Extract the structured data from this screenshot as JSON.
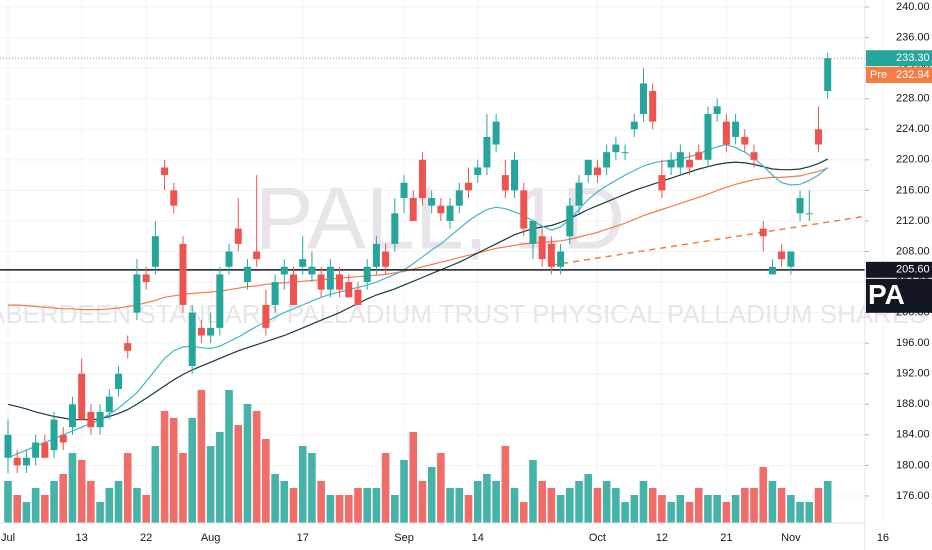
{
  "chart_data": {
    "type": "candlestick",
    "watermark": "PALL, 1D",
    "watermark_subtitle": "ABERDEEN STANDARD PALLADIUM TRUST PHYSICAL PALLADIUM SHARES ETF",
    "symbol_tag": "PA",
    "categories": [
      "Jul",
      null,
      null,
      null,
      null,
      null,
      null,
      null,
      "13",
      null,
      null,
      null,
      null,
      null,
      null,
      "22",
      null,
      null,
      null,
      null,
      null,
      null,
      "Aug",
      null,
      null,
      null,
      null,
      null,
      null,
      null,
      null,
      null,
      "17",
      null,
      null,
      null,
      null,
      null,
      null,
      null,
      null,
      null,
      null,
      "Sep",
      null,
      null,
      null,
      null,
      null,
      null,
      null,
      "14",
      null,
      null,
      null,
      null,
      null,
      null,
      null,
      null,
      null,
      null,
      null,
      null,
      "Oct",
      null,
      null,
      null,
      null,
      null,
      null,
      "12",
      null,
      null,
      null,
      null,
      null,
      null,
      "21",
      null,
      null,
      null,
      null,
      null,
      null,
      "Nov",
      null,
      null,
      null,
      null,
      null,
      null,
      null,
      null,
      null,
      "16"
    ],
    "open": [
      181,
      181,
      180,
      181,
      183,
      182,
      184,
      185,
      192,
      187,
      185,
      187,
      190,
      196,
      200,
      205,
      206,
      219,
      216,
      209,
      193,
      198,
      197,
      198,
      206,
      211,
      204,
      208,
      201,
      201,
      205,
      205,
      206,
      205,
      205,
      203,
      205,
      204,
      203,
      204,
      206,
      208,
      209,
      215,
      215,
      220,
      214,
      214,
      212,
      214,
      217,
      218,
      219,
      222,
      218,
      216,
      216,
      209,
      210,
      209,
      206,
      210,
      214,
      218,
      219,
      219,
      221,
      221,
      224,
      226,
      229,
      218,
      219,
      219,
      220,
      221,
      220,
      226,
      225,
      223,
      223,
      221,
      211,
      205,
      208,
      206,
      213,
      213,
      224,
      229,
      null,
      null,
      null,
      null,
      null,
      null
    ],
    "high": [
      186,
      182,
      182,
      184,
      184,
      187,
      185,
      189,
      194,
      188,
      188,
      190,
      193,
      197,
      207,
      206,
      212,
      220,
      217,
      210,
      201,
      199,
      200,
      206,
      209,
      215,
      207,
      218,
      203,
      205,
      207,
      206,
      210,
      208,
      206,
      207,
      206,
      205,
      204,
      207,
      210,
      209,
      215,
      218,
      216,
      221,
      216,
      215,
      215,
      217,
      219,
      220,
      226,
      226,
      220,
      221,
      217,
      212,
      211,
      210,
      209,
      215,
      218,
      220,
      220,
      222,
      223,
      222,
      226,
      232,
      230,
      220,
      221,
      222,
      221,
      222,
      227,
      228,
      226,
      226,
      224,
      222,
      212,
      207,
      209,
      208,
      216,
      216,
      227,
      234,
      null,
      null,
      null,
      null,
      null,
      null
    ],
    "low": [
      179,
      179,
      179,
      180,
      181,
      181,
      182,
      184,
      186,
      184,
      184,
      186,
      189,
      194,
      199,
      203,
      205,
      216,
      213,
      200,
      192,
      196,
      196,
      197,
      205,
      208,
      203,
      206,
      197,
      200,
      203,
      201,
      205,
      204,
      202,
      202,
      202,
      202,
      201,
      203,
      205,
      205,
      208,
      213,
      212,
      214,
      213,
      212,
      211,
      213,
      215,
      217,
      218,
      221,
      215,
      215,
      210,
      207,
      206,
      205,
      205,
      209,
      213,
      217,
      217,
      218,
      220,
      220,
      223,
      225,
      224,
      215,
      218,
      218,
      218,
      220,
      219,
      225,
      221,
      222,
      221,
      219,
      208,
      205,
      206,
      205,
      212,
      212,
      221,
      228,
      null,
      null,
      null,
      null,
      null,
      null
    ],
    "close": [
      184,
      180,
      181,
      183,
      181,
      186,
      183,
      188,
      186,
      185,
      187,
      189,
      192,
      195,
      205,
      204,
      210,
      218,
      214,
      201,
      200,
      197,
      198,
      205,
      208,
      209,
      206,
      207,
      198,
      204,
      206,
      201,
      207,
      206,
      203,
      206,
      203,
      202,
      201,
      206,
      209,
      206,
      213,
      217,
      212,
      215,
      215,
      213,
      214,
      216,
      216,
      219,
      223,
      225,
      216,
      220,
      211,
      212,
      207,
      206,
      208,
      214,
      217,
      220,
      218,
      221,
      222,
      221,
      225,
      230,
      225,
      216,
      220,
      221,
      219,
      220,
      226,
      227,
      222,
      225,
      222,
      220,
      210,
      206,
      207,
      208,
      215,
      213,
      222,
      233.3,
      null,
      null,
      null,
      null,
      null,
      null
    ],
    "volume": [
      30,
      20,
      15,
      25,
      20,
      30,
      35,
      50,
      45,
      30,
      15,
      25,
      30,
      50,
      25,
      20,
      55,
      80,
      75,
      50,
      75,
      95,
      55,
      65,
      95,
      70,
      85,
      80,
      60,
      35,
      30,
      25,
      55,
      50,
      30,
      20,
      20,
      20,
      25,
      25,
      25,
      50,
      20,
      45,
      65,
      30,
      40,
      50,
      25,
      25,
      20,
      30,
      35,
      30,
      55,
      25,
      15,
      45,
      30,
      25,
      20,
      25,
      30,
      35,
      25,
      30,
      25,
      15,
      20,
      30,
      25,
      20,
      15,
      20,
      15,
      25,
      20,
      20,
      15,
      20,
      25,
      25,
      40,
      30,
      25,
      20,
      15,
      15,
      25,
      30,
      null,
      null,
      null,
      null,
      null,
      null
    ],
    "vlim": [
      0,
      100
    ],
    "up_color": "#26a69a",
    "down_color": "#ef5350",
    "moving_averages": [
      {
        "color": "#f57c45",
        "values": [
          201,
          201,
          200.9,
          200.8,
          200.7,
          200.6,
          200.5,
          200.5,
          200.4,
          200.4,
          200.4,
          200.5,
          200.6,
          200.8,
          201,
          201.3,
          201.6,
          202,
          202.2,
          202.4,
          202.5,
          202.6,
          202.7,
          202.8,
          203,
          203.2,
          203.4,
          203.5,
          203.7,
          203.8,
          203.9,
          204,
          204.1,
          204.2,
          204.3,
          204.4,
          204.5,
          204.6,
          204.7,
          204.8,
          204.9,
          205,
          205.2,
          205.4,
          205.7,
          206,
          206.3,
          206.6,
          206.9,
          207.2,
          207.5,
          207.8,
          208.1,
          208.4,
          208.6,
          208.8,
          209,
          209.1,
          209.2,
          209.3,
          209.4,
          209.6,
          209.9,
          210.2,
          210.5,
          210.9,
          211.3,
          211.7,
          212.2,
          212.7,
          213.1,
          213.5,
          213.9,
          214.3,
          214.7,
          215.1,
          215.5,
          216,
          216.4,
          216.8,
          217.1,
          217.4,
          217.6,
          217.7,
          217.7,
          217.8,
          217.9,
          218.2,
          218.5,
          218.9,
          null,
          null,
          null,
          null,
          null,
          null
        ]
      },
      {
        "color": "#1b3a3a",
        "values": [
          188,
          187.7,
          187.4,
          187,
          186.7,
          186.4,
          186.2,
          186,
          186,
          186,
          186.1,
          186.4,
          186.8,
          187.3,
          188,
          188.8,
          189.6,
          190.4,
          191.2,
          191.9,
          192.5,
          193,
          193.5,
          194,
          194.5,
          195,
          195.4,
          195.8,
          196.2,
          196.6,
          197,
          197.5,
          198,
          198.5,
          199,
          199.5,
          200,
          200.6,
          201.2,
          201.8,
          202.3,
          202.7,
          203.1,
          203.6,
          204.1,
          204.6,
          205.1,
          205.6,
          206.1,
          206.6,
          207.2,
          207.8,
          208.4,
          209,
          209.6,
          210.2,
          210.6,
          211,
          211.2,
          211.4,
          211.8,
          212.3,
          212.9,
          213.5,
          214,
          214.5,
          215,
          215.5,
          216,
          216.4,
          216.8,
          217.2,
          217.6,
          218,
          218.4,
          218.8,
          219.1,
          219.4,
          219.6,
          219.7,
          219.6,
          219.4,
          219.1,
          218.8,
          218.7,
          218.7,
          218.8,
          219.1,
          219.5,
          220.1,
          null,
          null,
          null,
          null,
          null,
          null
        ]
      },
      {
        "color": "#3fb8c4",
        "values": [
          181,
          181.5,
          182,
          182.5,
          183,
          183.5,
          184,
          184.5,
          185,
          185.5,
          186,
          186.7,
          187.5,
          188.5,
          189.5,
          191,
          192.5,
          194,
          195,
          195.5,
          195.6,
          195.4,
          195.3,
          195.6,
          196.2,
          196.8,
          197.5,
          198.2,
          198.8,
          199.4,
          200,
          200.5,
          201,
          201.5,
          202,
          202.4,
          202.7,
          203,
          203.3,
          203.6,
          204,
          204.5,
          205,
          205.6,
          206.4,
          207.3,
          208.2,
          209,
          210,
          211,
          212,
          212.8,
          213.5,
          213.8,
          213.6,
          213.2,
          212.7,
          212,
          211.3,
          210.8,
          211.2,
          212.2,
          213.5,
          214.8,
          215.8,
          216.6,
          217.3,
          218,
          218.6,
          219.2,
          219.6,
          219.8,
          219.9,
          220.1,
          220.4,
          220.8,
          221.3,
          221.7,
          222,
          221.6,
          221,
          220.2,
          219.2,
          218,
          217,
          216.7,
          216.8,
          217.3,
          218,
          219,
          null,
          null,
          null,
          null,
          null,
          null
        ]
      }
    ],
    "trendline": {
      "color": "#f57c45",
      "x": [
        59,
        93
      ],
      "values": [
        206.2,
        212.6
      ]
    },
    "hline": {
      "value": 205.6,
      "label": "205.60",
      "color": "#131722"
    },
    "last_price": {
      "value": 233.3,
      "label": "233.30",
      "color": "#26a69a"
    },
    "premarket": {
      "text": "Pre",
      "value": 232.94,
      "label": "232.94",
      "color": "#f57c45"
    },
    "ylim": [
      172.46,
      240.92
    ],
    "yticks": [
      {
        "value": 176,
        "label": "176.00"
      },
      {
        "value": 180,
        "label": "180.00"
      },
      {
        "value": 184,
        "label": "184.00"
      },
      {
        "value": 188,
        "label": "188.00"
      },
      {
        "value": 192,
        "label": "192.00"
      },
      {
        "value": 196,
        "label": "196.00"
      },
      {
        "value": 200,
        "label": "200.00"
      },
      {
        "value": 204,
        "label": "204.00"
      },
      {
        "value": 208,
        "label": "208.00"
      },
      {
        "value": 212,
        "label": "212.00"
      },
      {
        "value": 216,
        "label": "216.00"
      },
      {
        "value": 220,
        "label": "220.00"
      },
      {
        "value": 224,
        "label": "224.00"
      },
      {
        "value": 228,
        "label": "228.00"
      },
      {
        "value": 232,
        "label": "232.00"
      },
      {
        "value": 236,
        "label": "236.00"
      },
      {
        "value": 240,
        "label": "240.00"
      }
    ],
    "grid": true
  }
}
